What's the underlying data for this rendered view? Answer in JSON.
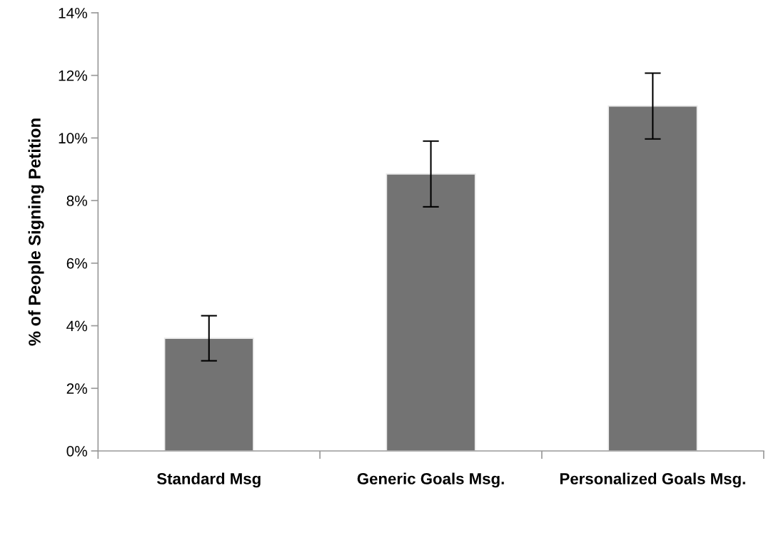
{
  "chart_data": {
    "type": "bar",
    "ylabel": "% of People Signing Petition",
    "categories": [
      "Standard Msg",
      "Generic Goals Msg.",
      "Personalized Goals Msg."
    ],
    "values": [
      3.6,
      8.85,
      11.02
    ],
    "errors": [
      0.72,
      1.05,
      1.05
    ],
    "color": "#737373",
    "ylim": [
      0,
      14
    ],
    "yticks": [
      {
        "value": 0,
        "label": "0%"
      },
      {
        "value": 2,
        "label": "2%"
      },
      {
        "value": 4,
        "label": "4%"
      },
      {
        "value": 6,
        "label": "6%"
      },
      {
        "value": 8,
        "label": "8%"
      },
      {
        "value": 10,
        "label": "10%"
      },
      {
        "value": 12,
        "label": "12%"
      },
      {
        "value": 14,
        "label": "14%"
      }
    ],
    "grid": false,
    "legend": false
  }
}
